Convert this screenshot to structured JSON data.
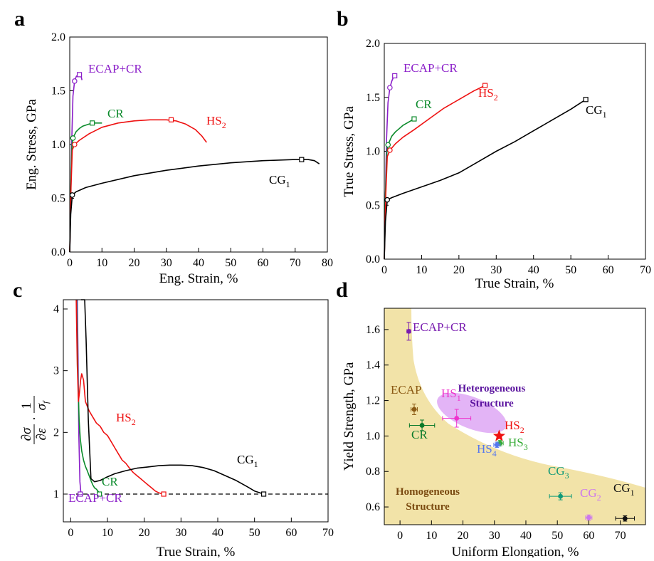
{
  "chart_data": [
    {
      "panel_label": "a",
      "type": "line",
      "xlabel": "Eng. Strain, %",
      "ylabel": "Eng. Stress, GPa",
      "xlim": [
        0,
        80
      ],
      "ylim": [
        0.0,
        2.0
      ],
      "xticks": [
        "0",
        "10",
        "20",
        "30",
        "40",
        "50",
        "60",
        "70",
        "80"
      ],
      "yticks": [
        "0.0",
        "0.5",
        "1.0",
        "1.5",
        "2.0"
      ],
      "series": [
        {
          "name": "ECAP+CR",
          "color": "#8b1fc9",
          "x": [
            0,
            0.3,
            0.6,
            1,
            1.5,
            2,
            2.5,
            3,
            3.5,
            3.8
          ],
          "y": [
            0,
            0.5,
            1.0,
            1.45,
            1.59,
            1.63,
            1.65,
            1.65,
            1.64,
            1.6
          ],
          "marker_circle": [
            1.5,
            1.59
          ],
          "marker_square": [
            3.0,
            1.65
          ]
        },
        {
          "name": "CR",
          "color": "#0a8a2a",
          "x": [
            0,
            0.3,
            0.7,
            1,
            2,
            3,
            4,
            5,
            6,
            7,
            8,
            10
          ],
          "y": [
            0,
            0.6,
            1.0,
            1.06,
            1.12,
            1.15,
            1.17,
            1.18,
            1.19,
            1.2,
            1.2,
            1.2
          ],
          "marker_circle": [
            1.0,
            1.06
          ],
          "marker_square": [
            7.0,
            1.2
          ]
        },
        {
          "name": "HS",
          "sub": "2",
          "color": "#ee1111",
          "x": [
            0,
            0.4,
            0.8,
            1.5,
            3,
            6,
            10,
            15,
            20,
            25,
            30,
            33,
            36,
            39,
            41,
            42.5
          ],
          "y": [
            0,
            0.6,
            0.95,
            1.0,
            1.04,
            1.1,
            1.16,
            1.2,
            1.22,
            1.23,
            1.23,
            1.22,
            1.19,
            1.14,
            1.08,
            1.02
          ],
          "marker_circle": [
            1.5,
            1.0
          ],
          "marker_square": [
            31.5,
            1.23
          ]
        },
        {
          "name": "CG",
          "sub": "1",
          "color": "#000000",
          "x": [
            0,
            0.3,
            0.8,
            2,
            5,
            10,
            20,
            30,
            40,
            50,
            60,
            70,
            74,
            76,
            77.5
          ],
          "y": [
            0,
            0.35,
            0.53,
            0.56,
            0.6,
            0.64,
            0.71,
            0.76,
            0.8,
            0.83,
            0.85,
            0.86,
            0.86,
            0.85,
            0.82
          ],
          "marker_circle": [
            0.8,
            0.53
          ],
          "marker_square": [
            72,
            0.86
          ]
        }
      ]
    },
    {
      "panel_label": "b",
      "type": "line",
      "xlabel": "True Strain, %",
      "ylabel": "True Stress, GPa",
      "xlim": [
        0,
        70
      ],
      "ylim": [
        0.0,
        2.0
      ],
      "xticks": [
        "0",
        "10",
        "20",
        "30",
        "40",
        "50",
        "60",
        "70"
      ],
      "yticks": [
        "0.0",
        "0.5",
        "1.0",
        "1.5",
        "2.0"
      ],
      "series": [
        {
          "name": "ECAP+CR",
          "color": "#8b1fc9",
          "x": [
            0,
            0.3,
            0.6,
            1,
            1.5,
            2,
            2.5,
            3
          ],
          "y": [
            0,
            0.6,
            1.1,
            1.45,
            1.59,
            1.65,
            1.69,
            1.7
          ],
          "marker_circle": [
            1.5,
            1.59
          ],
          "marker_square": [
            2.8,
            1.7
          ]
        },
        {
          "name": "CR",
          "color": "#0a8a2a",
          "x": [
            0,
            0.3,
            0.7,
            1,
            2,
            3,
            4,
            5,
            6,
            7,
            8
          ],
          "y": [
            0,
            0.6,
            1.0,
            1.06,
            1.14,
            1.18,
            1.21,
            1.24,
            1.26,
            1.28,
            1.3
          ],
          "marker_circle": [
            1.0,
            1.06
          ],
          "marker_square": [
            8.0,
            1.3
          ]
        },
        {
          "name": "HS",
          "sub": "2",
          "color": "#ee1111",
          "x": [
            0,
            0.4,
            0.8,
            1.5,
            3,
            5,
            8,
            12,
            16,
            20,
            24,
            27
          ],
          "y": [
            0,
            0.6,
            0.95,
            1.01,
            1.07,
            1.13,
            1.2,
            1.3,
            1.4,
            1.48,
            1.56,
            1.61
          ],
          "marker_circle": [
            1.5,
            1.01
          ],
          "marker_square": [
            27,
            1.61
          ]
        },
        {
          "name": "CG",
          "sub": "1",
          "color": "#000000",
          "x": [
            0,
            0.3,
            0.8,
            2,
            5,
            10,
            15,
            20,
            25,
            30,
            35,
            40,
            45,
            50,
            54
          ],
          "y": [
            0,
            0.35,
            0.55,
            0.57,
            0.61,
            0.67,
            0.73,
            0.8,
            0.9,
            1.0,
            1.09,
            1.19,
            1.29,
            1.39,
            1.48
          ],
          "marker_circle": [
            0.8,
            0.55
          ],
          "marker_square": [
            54,
            1.48
          ]
        }
      ]
    },
    {
      "panel_label": "c",
      "type": "line",
      "xlabel": "True Strain, %",
      "ylabel": "∂σ/∂ε · 1/σf",
      "xlim": [
        -2,
        70
      ],
      "ylim": [
        0.55,
        4.15
      ],
      "xticks": [
        "0",
        "10",
        "20",
        "30",
        "40",
        "50",
        "60",
        "70"
      ],
      "yticks": [
        "1",
        "2",
        "3",
        "4"
      ],
      "reference_line": 1,
      "series": [
        {
          "name": "ECAP+CR",
          "color": "#8b1fc9",
          "x": [
            1.8,
            2.0,
            2.2,
            2.5,
            2.8
          ],
          "y": [
            4.15,
            3.2,
            2.0,
            1.2,
            1.0
          ],
          "marker_square": [
            2.6,
            1.0
          ]
        },
        {
          "name": "CR",
          "color": "#0a8a2a",
          "x": [
            1.6,
            1.8,
            2.0,
            2.3,
            2.6,
            3.0,
            3.5,
            4.0,
            4.5,
            5,
            5.5,
            6,
            6.5,
            7,
            7.5,
            8
          ],
          "y": [
            4.15,
            3.5,
            2.8,
            2.2,
            1.9,
            1.7,
            1.55,
            1.45,
            1.38,
            1.3,
            1.22,
            1.15,
            1.1,
            1.08,
            1.04,
            1.0
          ],
          "marker_square": [
            7.8,
            1.0
          ]
        },
        {
          "name": "HS",
          "sub": "2",
          "color": "#ee1111",
          "x": [
            1.5,
            1.8,
            2.1,
            2.4,
            2.7,
            3.0,
            3.5,
            4,
            5,
            6,
            7,
            8,
            9,
            10,
            11,
            12,
            13,
            14,
            15,
            16,
            17,
            18,
            19,
            20,
            21,
            22,
            23,
            24,
            25
          ],
          "y": [
            4.15,
            3.1,
            2.5,
            2.65,
            2.85,
            2.95,
            2.85,
            2.5,
            2.35,
            2.25,
            2.15,
            2.1,
            2.0,
            1.95,
            1.85,
            1.75,
            1.65,
            1.55,
            1.5,
            1.42,
            1.35,
            1.3,
            1.25,
            1.2,
            1.15,
            1.1,
            1.05,
            1.02,
            1.0
          ],
          "marker_square": [
            25.3,
            1.0
          ]
        },
        {
          "name": "CG",
          "sub": "1",
          "color": "#000000",
          "x": [
            2.8,
            3.0,
            3.4,
            3.8,
            4.2,
            4.8,
            5.5,
            6.5,
            8,
            10,
            12,
            15,
            18,
            21,
            24,
            27,
            30,
            33,
            36,
            39,
            42,
            45,
            48,
            50,
            52.5
          ],
          "y": [
            4.15,
            4.15,
            4.15,
            4.15,
            3.5,
            2.2,
            1.25,
            1.2,
            1.22,
            1.28,
            1.33,
            1.38,
            1.42,
            1.44,
            1.46,
            1.47,
            1.47,
            1.46,
            1.43,
            1.38,
            1.3,
            1.22,
            1.12,
            1.05,
            1.0
          ],
          "marker_square": [
            52.5,
            1.0
          ]
        }
      ]
    },
    {
      "panel_label": "d",
      "type": "scatter",
      "xlabel": "Uniform Elongation, %",
      "ylabel": "Yield Strength, GPa",
      "xlim": [
        -5,
        78
      ],
      "ylim": [
        0.5,
        1.72
      ],
      "xticks": [
        "0",
        "10",
        "20",
        "30",
        "40",
        "50",
        "60",
        "70"
      ],
      "yticks": [
        "0.6",
        "0.8",
        "1.0",
        "1.2",
        "1.4",
        "1.6"
      ],
      "points": [
        {
          "name": "ECAP+CR",
          "color": "#7a1db0",
          "x": 2.8,
          "y": 1.59,
          "xerr": 0.6,
          "yerr": 0.05
        },
        {
          "name": "ECAP",
          "color": "#8b5a14",
          "x": 4.5,
          "y": 1.15,
          "xerr": 1.0,
          "yerr": 0.03
        },
        {
          "name": "CR",
          "color": "#0a7a2a",
          "x": 7.0,
          "y": 1.06,
          "xerr": 4.0,
          "yerr": 0.03
        },
        {
          "name": "HS",
          "sub": "1",
          "color": "#ee33cc",
          "x": 18.0,
          "y": 1.1,
          "xerr": 4.5,
          "yerr": 0.05
        },
        {
          "name": "HS",
          "sub": "2",
          "color": "#ee1111",
          "x": 31.5,
          "y": 1.0,
          "marker": "star"
        },
        {
          "name": "HS",
          "sub": "3",
          "color": "#33aa33",
          "x": 31.8,
          "y": 0.96,
          "xerr": 1.0,
          "yerr": 0.015
        },
        {
          "name": "HS",
          "sub": "4",
          "color": "#5577ee",
          "x": 30.8,
          "y": 0.95,
          "xerr": 1.0,
          "yerr": 0.015
        },
        {
          "name": "CG",
          "sub": "3",
          "color": "#109a78",
          "x": 51.0,
          "y": 0.66,
          "xerr": 3.5,
          "yerr": 0.02
        },
        {
          "name": "CG",
          "sub": "2",
          "color": "#cc77ee",
          "x": 60.0,
          "y": 0.54,
          "xerr": 1.0,
          "yerr": 0.015
        },
        {
          "name": "CG",
          "sub": "1",
          "color": "#111111",
          "x": 71.5,
          "y": 0.535,
          "xerr": 3.0,
          "yerr": 0.015
        }
      ],
      "regions": [
        {
          "label": "Heterogeneous Structure",
          "color": "#cc77ee"
        },
        {
          "label": "Homogeneous Structure",
          "color": "#f2e3a8"
        }
      ]
    }
  ]
}
